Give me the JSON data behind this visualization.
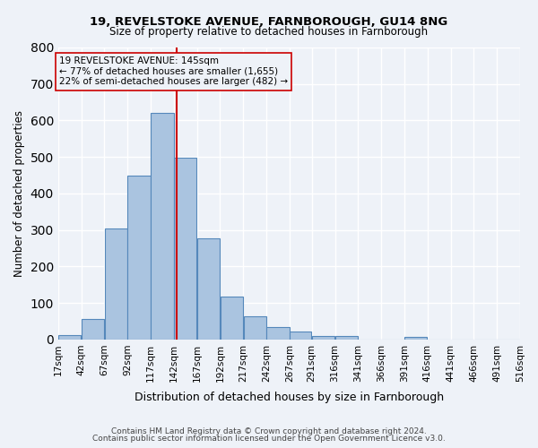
{
  "title1": "19, REVELSTOKE AVENUE, FARNBOROUGH, GU14 8NG",
  "title2": "Size of property relative to detached houses in Farnborough",
  "xlabel": "Distribution of detached houses by size in Farnborough",
  "ylabel": "Number of detached properties",
  "footnote1": "Contains HM Land Registry data © Crown copyright and database right 2024.",
  "footnote2": "Contains public sector information licensed under the Open Government Licence v3.0.",
  "annotation_line1": "19 REVELSTOKE AVENUE: 145sqm",
  "annotation_line2": "← 77% of detached houses are smaller (1,655)",
  "annotation_line3": "22% of semi-detached houses are larger (482) →",
  "property_size": 145,
  "bar_edges": [
    17,
    42,
    67,
    92,
    117,
    142,
    167,
    192,
    217,
    242,
    267,
    291,
    316,
    341,
    366,
    391,
    416,
    441,
    466,
    491,
    516
  ],
  "bar_heights": [
    12,
    55,
    305,
    450,
    621,
    498,
    278,
    117,
    63,
    35,
    22,
    10,
    10,
    0,
    0,
    8,
    0,
    0,
    0,
    0
  ],
  "bar_color": "#aac4e0",
  "bar_edge_color": "#5588bb",
  "vline_color": "#cc0000",
  "bg_color": "#eef2f8",
  "grid_color": "#ffffff",
  "tick_labels": [
    "17sqm",
    "42sqm",
    "67sqm",
    "92sqm",
    "117sqm",
    "142sqm",
    "167sqm",
    "192sqm",
    "217sqm",
    "242sqm",
    "267sqm",
    "291sqm",
    "316sqm",
    "341sqm",
    "366sqm",
    "391sqm",
    "416sqm",
    "441sqm",
    "466sqm",
    "491sqm",
    "516sqm"
  ],
  "ylim": [
    0,
    800
  ],
  "yticks": [
    0,
    100,
    200,
    300,
    400,
    500,
    600,
    700,
    800
  ]
}
